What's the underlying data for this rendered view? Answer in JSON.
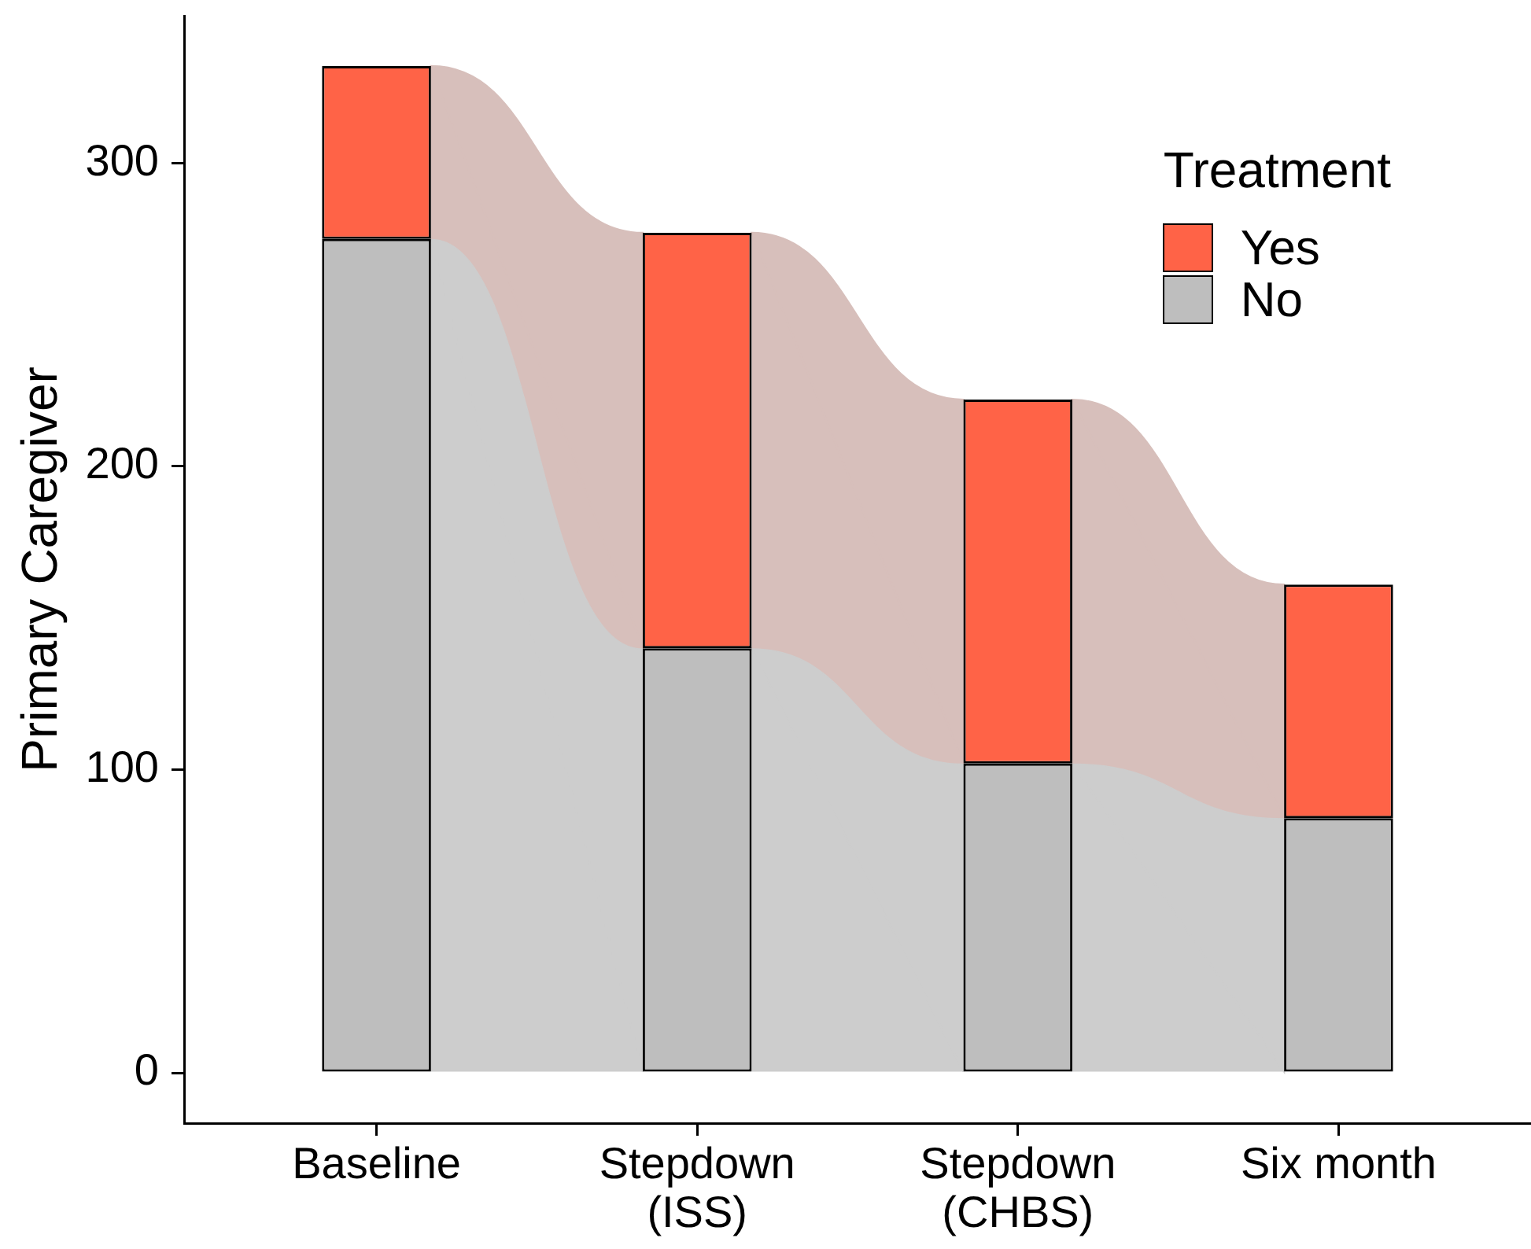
{
  "chart_data": {
    "type": "bar",
    "stacked": true,
    "categories": [
      "Baseline",
      "Stepdown\n(ISS)",
      "Stepdown\n(CHBS)",
      "Six month"
    ],
    "series": [
      {
        "name": "No",
        "color": "#bebebe",
        "values": [
          275,
          140,
          102,
          84
        ]
      },
      {
        "name": "Yes",
        "color": "#ff6347",
        "values": [
          57,
          137,
          120,
          77
        ]
      }
    ],
    "ylabel": "Primary Caregiver",
    "legend_title": "Treatment",
    "legend": "top right",
    "ylim": [
      -16.6,
      348.6
    ],
    "yticks": [
      0,
      100,
      200,
      300
    ]
  }
}
